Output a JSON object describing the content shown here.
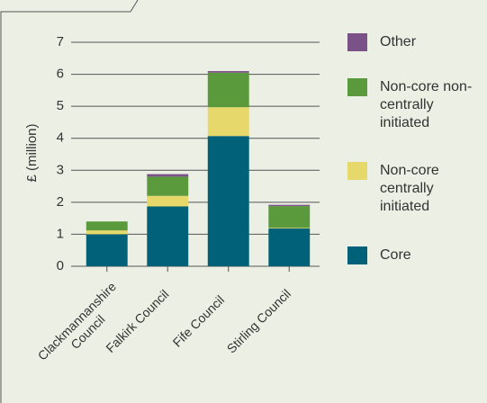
{
  "chart_data": {
    "type": "stacked_bar",
    "ylabel": "£ (million)",
    "categories": [
      "Clackmannanshire Council",
      "Falkirk Council",
      "Fife Council",
      "Stirling Council"
    ],
    "series": [
      {
        "name": "Core",
        "color": "#006178",
        "values": [
          1.0,
          1.87,
          4.07,
          1.18
        ]
      },
      {
        "name": "Non-core centrally initiated",
        "color": "#e6d86a",
        "values": [
          0.12,
          0.33,
          0.9,
          0.02
        ]
      },
      {
        "name": "Non-core non-centrally initiated",
        "color": "#5a9a3c",
        "values": [
          0.28,
          0.6,
          1.08,
          0.68
        ]
      },
      {
        "name": "Other",
        "color": "#7b5288",
        "values": [
          0,
          0.08,
          0.05,
          0.04
        ]
      }
    ],
    "ylim": [
      0,
      7
    ],
    "yticks": [
      0,
      1,
      2,
      3,
      4,
      5,
      6,
      7
    ],
    "grid": true
  }
}
